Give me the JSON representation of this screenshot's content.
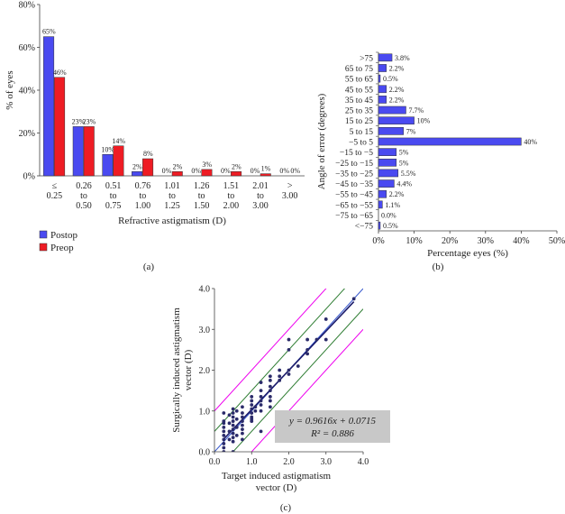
{
  "chart_data": [
    {
      "panel": "(a)",
      "type": "bar",
      "ylabel": "% of eyes",
      "xlabel": "Refractive astigmatism (D)",
      "ylim": [
        0,
        80
      ],
      "yticks": [
        "0%",
        "20%",
        "40%",
        "60%",
        "80%"
      ],
      "categories": [
        [
          "≤",
          "0.25"
        ],
        [
          "0.26",
          "to",
          "0.50"
        ],
        [
          "0.51",
          "to",
          "0.75"
        ],
        [
          "0.76",
          "to",
          "1.00"
        ],
        [
          "1.01",
          "to",
          "1.25"
        ],
        [
          "1.26",
          "to",
          "1.50"
        ],
        [
          "1.51",
          "to",
          "2.00"
        ],
        [
          "2.01",
          "to",
          "3.00"
        ],
        [
          ">",
          "3.00"
        ]
      ],
      "series": [
        {
          "name": "Postop",
          "color": "#4a4af0",
          "values": [
            65,
            23,
            10,
            2,
            0,
            0,
            0,
            0,
            0
          ],
          "labels": [
            "65%",
            "23%",
            "10%",
            "2%",
            "0%",
            "0%",
            "0%",
            "0%",
            "0%"
          ]
        },
        {
          "name": "Preop",
          "color": "#ee1c24",
          "values": [
            46,
            23,
            14,
            8,
            2,
            3,
            2,
            1,
            0
          ],
          "labels": [
            "46%",
            "23%",
            "14%",
            "8%",
            "2%",
            "3%",
            "2%",
            "1%",
            "0%"
          ]
        }
      ],
      "legend": "bottom-left"
    },
    {
      "panel": "(b)",
      "type": "bar",
      "orientation": "horizontal",
      "ylabel": "Angle of error (degrees)",
      "xlabel": "Percentage eyes (%)",
      "xlim": [
        0,
        50
      ],
      "xticks": [
        "0%",
        "10%",
        "20%",
        "30%",
        "40%",
        "50%"
      ],
      "categories": [
        ">75",
        "65 to 75",
        "55 to 65",
        "45 to 55",
        "35 to 45",
        "25 to 35",
        "15 to 25",
        "5 to 15",
        "−5 to 5",
        "−15 to −5",
        "−25 to −15",
        "−35 to −25",
        "−45 to −35",
        "−55 to −45",
        "−65 to −55",
        "−75 to −65",
        "<−75"
      ],
      "values": [
        3.8,
        2.2,
        0.5,
        2.2,
        2.2,
        7.7,
        10,
        7,
        40,
        5,
        5,
        5.5,
        4.4,
        2.2,
        1.1,
        0.0,
        0.5
      ],
      "labels": [
        "3.8%",
        "2.2%",
        "0.5%",
        "2.2%",
        "2.2%",
        "7.7%",
        "10%",
        "7%",
        "40%",
        "5%",
        "5%",
        "5.5%",
        "4.4%",
        "2.2%",
        "1.1%",
        "0.0%",
        "0.5%"
      ],
      "color": "#4a4af0"
    },
    {
      "panel": "(c)",
      "type": "scatter",
      "xlabel": [
        "Target induced astigmatism",
        "vector (D)"
      ],
      "ylabel": [
        "Surgically induced astigmatism",
        "vector (D)"
      ],
      "xlim": [
        0,
        4
      ],
      "ylim": [
        0,
        4
      ],
      "xticks": [
        "0.0",
        "1.0",
        "2.0",
        "3.0",
        "4.0"
      ],
      "yticks": [
        "0.0",
        "1.0",
        "2.0",
        "3.0",
        "4.0"
      ],
      "equation": "y = 0.9616x + 0.0715",
      "r2": "R² = 0.886",
      "fit": {
        "slope": 0.9616,
        "intercept": 0.0715
      },
      "bands": [
        {
          "offset": 0.5,
          "color": "#2e7d32"
        },
        {
          "offset": -0.5,
          "color": "#2e7d32"
        },
        {
          "offset": 1.0,
          "color": "#ee00ee"
        },
        {
          "offset": -1.0,
          "color": "#ee00ee"
        }
      ],
      "point_color": "#2b2b6a",
      "points": [
        [
          0.25,
          0.0
        ],
        [
          0.25,
          0.1
        ],
        [
          0.25,
          0.2
        ],
        [
          0.25,
          0.3
        ],
        [
          0.25,
          0.4
        ],
        [
          0.25,
          0.5
        ],
        [
          0.25,
          0.6
        ],
        [
          0.25,
          0.7
        ],
        [
          0.25,
          0.75
        ],
        [
          0.25,
          0.95
        ],
        [
          0.5,
          0.0
        ],
        [
          0.5,
          0.25
        ],
        [
          0.5,
          0.35
        ],
        [
          0.5,
          0.45
        ],
        [
          0.5,
          0.55
        ],
        [
          0.5,
          0.65
        ],
        [
          0.5,
          0.75
        ],
        [
          0.5,
          0.85
        ],
        [
          0.5,
          0.95
        ],
        [
          0.5,
          1.05
        ],
        [
          0.4,
          0.3
        ],
        [
          0.4,
          0.5
        ],
        [
          0.4,
          0.7
        ],
        [
          0.4,
          0.9
        ],
        [
          0.6,
          0.4
        ],
        [
          0.6,
          0.6
        ],
        [
          0.6,
          0.8
        ],
        [
          0.6,
          1.0
        ],
        [
          0.75,
          0.3
        ],
        [
          0.75,
          0.45
        ],
        [
          0.75,
          0.55
        ],
        [
          0.75,
          0.65
        ],
        [
          0.75,
          0.75
        ],
        [
          0.75,
          0.85
        ],
        [
          0.75,
          0.95
        ],
        [
          0.75,
          1.1
        ],
        [
          1.0,
          0.75
        ],
        [
          1.0,
          0.85
        ],
        [
          1.0,
          0.95
        ],
        [
          1.0,
          1.05
        ],
        [
          1.0,
          1.15
        ],
        [
          1.0,
          1.25
        ],
        [
          1.0,
          1.35
        ],
        [
          1.0,
          0.8
        ],
        [
          1.1,
          1.0
        ],
        [
          1.1,
          1.1
        ],
        [
          1.25,
          0.5
        ],
        [
          1.25,
          1.0
        ],
        [
          1.25,
          1.15
        ],
        [
          1.25,
          1.25
        ],
        [
          1.25,
          1.35
        ],
        [
          1.25,
          1.5
        ],
        [
          1.25,
          1.7
        ],
        [
          1.5,
          1.1
        ],
        [
          1.5,
          1.25
        ],
        [
          1.5,
          1.35
        ],
        [
          1.5,
          1.5
        ],
        [
          1.5,
          1.6
        ],
        [
          1.5,
          1.75
        ],
        [
          1.5,
          1.85
        ],
        [
          1.75,
          1.75
        ],
        [
          1.75,
          1.85
        ],
        [
          1.75,
          2.0
        ],
        [
          2.0,
          1.9
        ],
        [
          2.0,
          2.0
        ],
        [
          2.0,
          2.5
        ],
        [
          2.0,
          2.75
        ],
        [
          2.25,
          2.1
        ],
        [
          2.5,
          2.5
        ],
        [
          2.5,
          2.75
        ],
        [
          2.5,
          2.4
        ],
        [
          2.75,
          2.75
        ],
        [
          3.0,
          2.75
        ],
        [
          3.0,
          3.25
        ],
        [
          3.75,
          3.75
        ]
      ]
    }
  ],
  "captions": {
    "a": "(a)",
    "b": "(b)",
    "c": "(c)"
  }
}
